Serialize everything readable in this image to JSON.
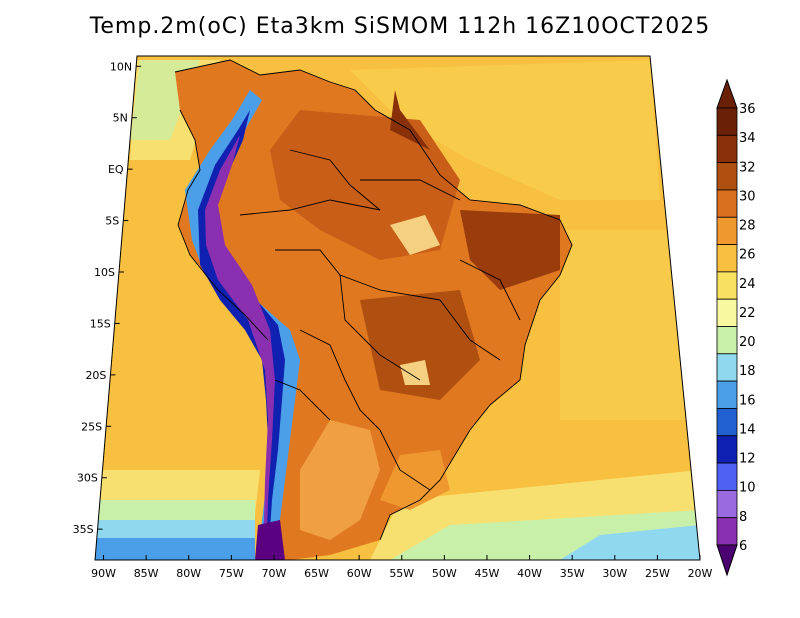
{
  "title": "Temp.2m(oC) Eta3km SiSMOM 112h 16Z10OCT2025",
  "map": {
    "lat_ticks": [
      {
        "label": "10N",
        "lat": 10
      },
      {
        "label": "5N",
        "lat": 5
      },
      {
        "label": "EQ",
        "lat": 0
      },
      {
        "label": "5S",
        "lat": -5
      },
      {
        "label": "10S",
        "lat": -10
      },
      {
        "label": "15S",
        "lat": -15
      },
      {
        "label": "20S",
        "lat": -20
      },
      {
        "label": "25S",
        "lat": -25
      },
      {
        "label": "30S",
        "lat": -30
      },
      {
        "label": "35S",
        "lat": -35
      }
    ],
    "lon_ticks": [
      {
        "label": "90W",
        "lon": -90
      },
      {
        "label": "85W",
        "lon": -85
      },
      {
        "label": "80W",
        "lon": -80
      },
      {
        "label": "75W",
        "lon": -75
      },
      {
        "label": "70W",
        "lon": -70
      },
      {
        "label": "65W",
        "lon": -65
      },
      {
        "label": "60W",
        "lon": -60
      },
      {
        "label": "55W",
        "lon": -55
      },
      {
        "label": "50W",
        "lon": -50
      },
      {
        "label": "45W",
        "lon": -45
      },
      {
        "label": "40W",
        "lon": -40
      },
      {
        "label": "35W",
        "lon": -35
      },
      {
        "label": "30W",
        "lon": -30
      },
      {
        "label": "25W",
        "lon": -25
      },
      {
        "label": "20W",
        "lon": -20
      }
    ],
    "lon_range": [
      -91,
      -20
    ],
    "lat_range": [
      -38,
      11
    ]
  },
  "colorbar": {
    "labels": [
      "6",
      "8",
      "10",
      "12",
      "14",
      "16",
      "18",
      "20",
      "22",
      "24",
      "26",
      "28",
      "30",
      "32",
      "34",
      "36"
    ],
    "colors": [
      "#5a0080",
      "#8a2fb0",
      "#9a6ae0",
      "#5060f0",
      "#1020b0",
      "#2060d0",
      "#4a9fe8",
      "#8fd8f0",
      "#c8f0a8",
      "#f8f8a0",
      "#f8e060",
      "#f8c040",
      "#f09830",
      "#d87020",
      "#b05010",
      "#8a3008",
      "#6a2006"
    ],
    "min_color": "#4a0070",
    "max_color": "#6a2006"
  }
}
